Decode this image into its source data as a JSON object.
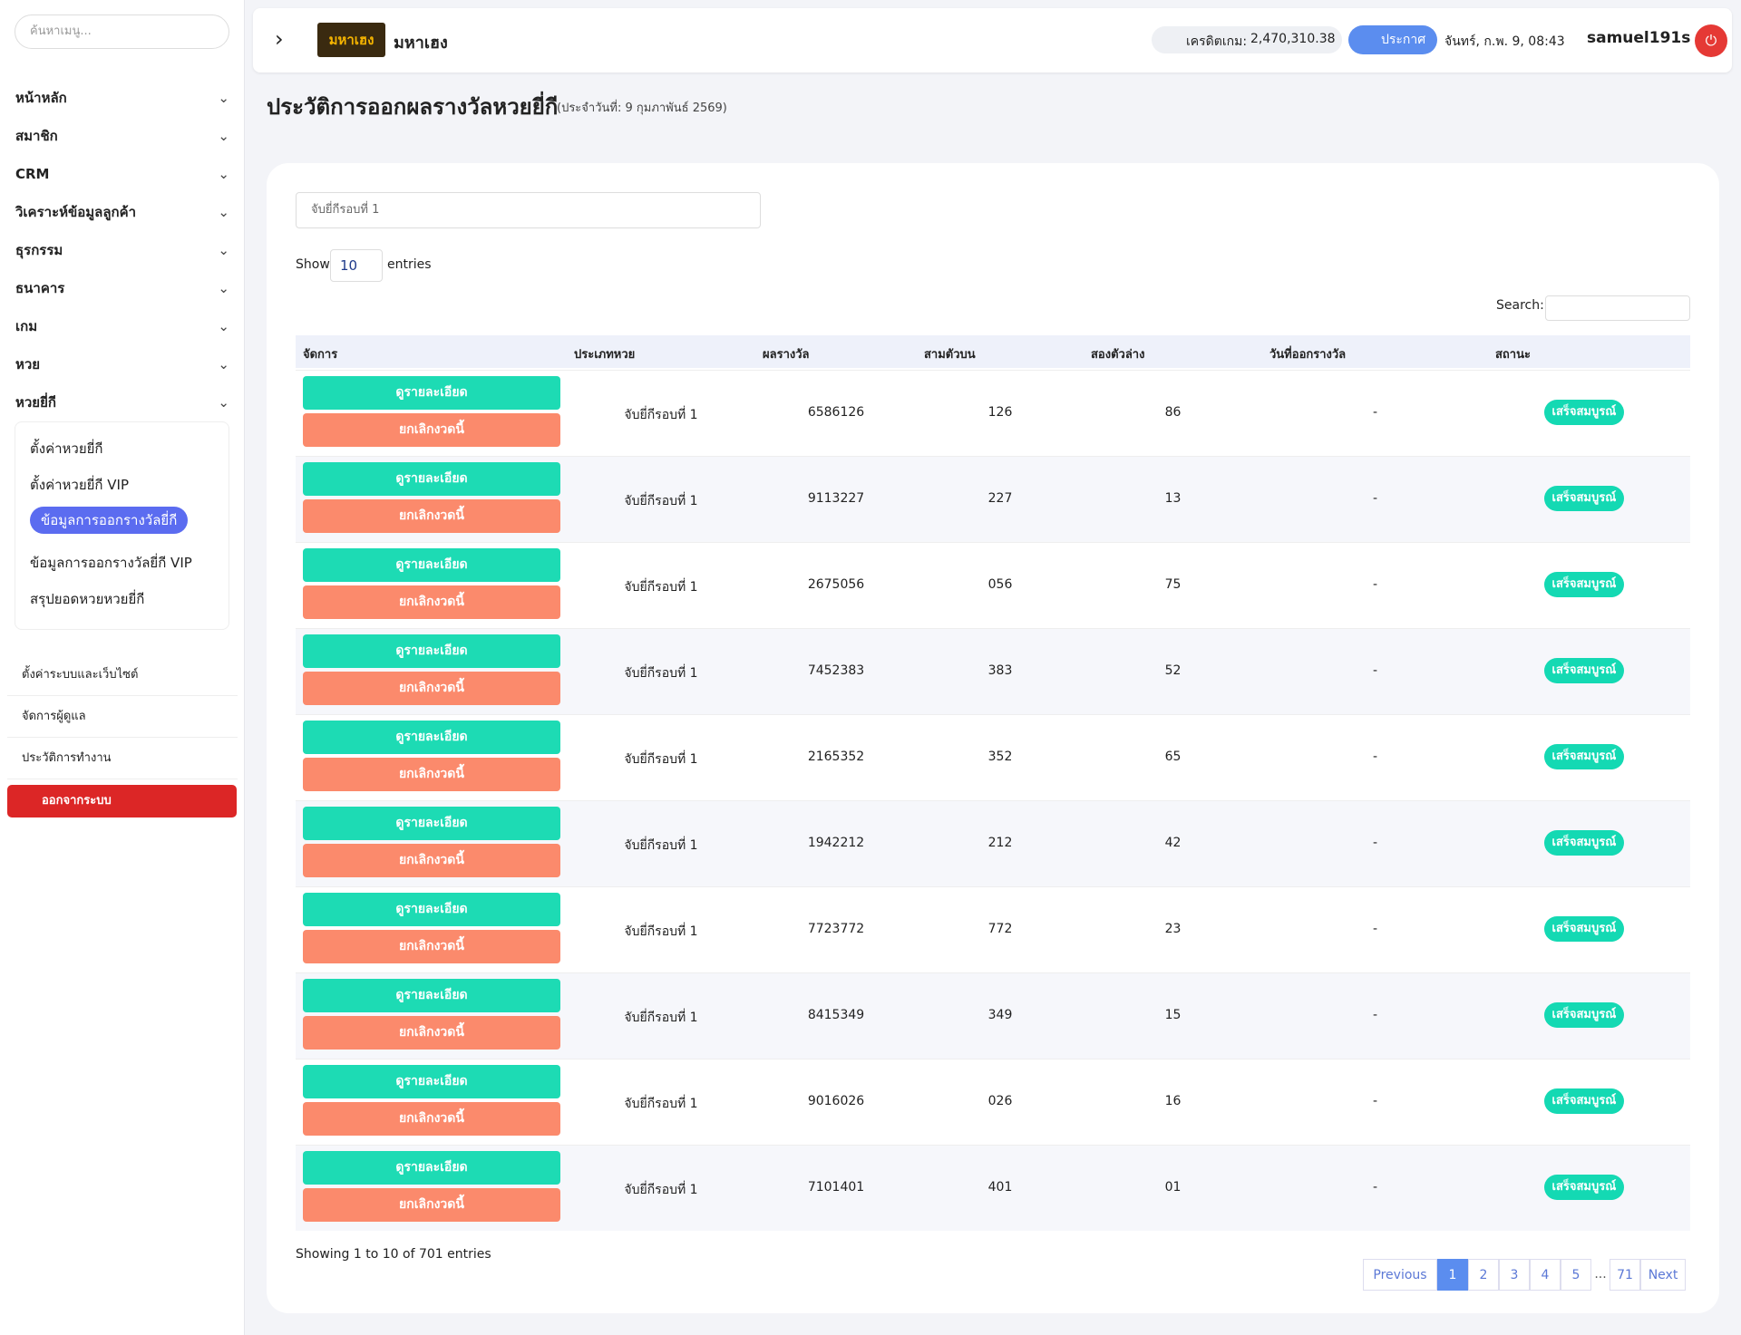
{
  "sidebar": {
    "search_placeholder": "ค้นหาเมนู...",
    "menu": [
      "หน้าหลัก",
      "สมาชิก",
      "CRM",
      "วิเคราะห์ข้อมูลลูกค้า",
      "ธุรกรรม",
      "ธนาคาร",
      "เกม",
      "หวย",
      "หวยยี่กี"
    ],
    "submenu": [
      "ตั้งค่าหวยยี่กี",
      "ตั้งค่าหวยยี่กี VIP",
      "ข้อมูลการออกรางวัลยี่กี",
      "ข้อมูลการออกรางวัลยี่กี VIP",
      "สรุปยอดหวยหวยยี่กี"
    ],
    "bottom": [
      "ตั้งค่าระบบและเว็บไซต์",
      "จัดการผู้ดูแล",
      "ประวัติการทำงาน"
    ],
    "logout": "ออกจากระบบ"
  },
  "header": {
    "logo_text": "มหาเฮง",
    "site_name": "มหาเฮง",
    "credit_label": "เครดิตเกม:",
    "credit_value": "2,470,310.38",
    "announce": "ประกาศ",
    "datetime": "จันทร์, ก.พ. 9, 08:43",
    "username": "samuel191s"
  },
  "page": {
    "title": "ประวัติการออกผลรางวัลหวยยี่กี",
    "subtitle": "(ประจำวันที่: 9 กุมภาพันธ์ 2569)"
  },
  "filter": "จับยี่กีรอบที่ 1",
  "table": {
    "show": "Show",
    "page_length": "10",
    "entries": "entries",
    "search_label": "Search:",
    "columns": [
      "จัดการ",
      "ประเภทหวย",
      "ผลรางวัล",
      "สามตัวบน",
      "สองตัวล่าง",
      "วันที่ออกรางวัล",
      "สถานะ"
    ],
    "view_button": "ดูรายละเอียด",
    "cancel_button": "ยกเลิกงวดนี้",
    "rows": [
      [
        "จับยี่กีรอบที่ 1",
        "6586126",
        "126",
        "86",
        "-",
        "เสร็จสมบูรณ์"
      ],
      [
        "จับยี่กีรอบที่ 1",
        "9113227",
        "227",
        "13",
        "-",
        "เสร็จสมบูรณ์"
      ],
      [
        "จับยี่กีรอบที่ 1",
        "2675056",
        "056",
        "75",
        "-",
        "เสร็จสมบูรณ์"
      ],
      [
        "จับยี่กีรอบที่ 1",
        "7452383",
        "383",
        "52",
        "-",
        "เสร็จสมบูรณ์"
      ],
      [
        "จับยี่กีรอบที่ 1",
        "2165352",
        "352",
        "65",
        "-",
        "เสร็จสมบูรณ์"
      ],
      [
        "จับยี่กีรอบที่ 1",
        "1942212",
        "212",
        "42",
        "-",
        "เสร็จสมบูรณ์"
      ],
      [
        "จับยี่กีรอบที่ 1",
        "7723772",
        "772",
        "23",
        "-",
        "เสร็จสมบูรณ์"
      ],
      [
        "จับยี่กีรอบที่ 1",
        "8415349",
        "349",
        "15",
        "-",
        "เสร็จสมบูรณ์"
      ],
      [
        "จับยี่กีรอบที่ 1",
        "9016026",
        "026",
        "16",
        "-",
        "เสร็จสมบูรณ์"
      ],
      [
        "จับยี่กีรอบที่ 1",
        "7101401",
        "401",
        "01",
        "-",
        "เสร็จสมบูรณ์"
      ]
    ],
    "info": "Showing 1 to 10 of 701 entries",
    "pagination": [
      "Previous",
      "1",
      "2",
      "3",
      "4",
      "5",
      "...",
      "71",
      "Next"
    ]
  }
}
